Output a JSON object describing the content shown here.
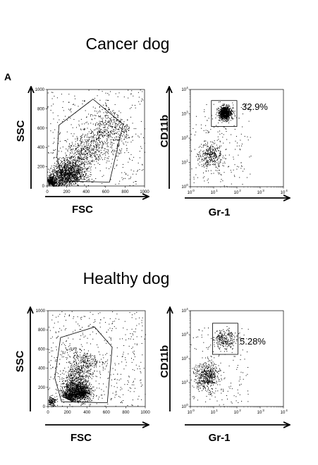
{
  "panel_label": "A",
  "chart_data": [
    {
      "type": "scatter",
      "title": "Cancer dog",
      "xlabel": "FSC",
      "ylabel": "SSC",
      "xlim": [
        0,
        1000
      ],
      "ylim": [
        0,
        1000
      ],
      "xticks": [
        0,
        200,
        400,
        600,
        800,
        1000
      ],
      "yticks": [
        0,
        200,
        400,
        600,
        800,
        1000
      ],
      "x_tick_labels": [
        "0",
        "200",
        "400",
        "600",
        "800",
        "1000"
      ],
      "y_tick_labels": [
        "0",
        "200",
        "400",
        "600",
        "800",
        "1000"
      ],
      "gate": {
        "shape": "polygon",
        "vertices": [
          [
            120,
            630
          ],
          [
            470,
            900
          ],
          [
            780,
            640
          ],
          [
            640,
            40
          ],
          [
            160,
            50
          ],
          [
            100,
            300
          ]
        ]
      },
      "populations": [
        {
          "name": "",
          "shape": "band",
          "from": [
            40,
            20
          ],
          "to": [
            760,
            700
          ],
          "spread": 140,
          "count": 1900
        },
        {
          "name": "",
          "shape": "blob",
          "center": [
            250,
            110
          ],
          "sd": [
            70,
            55
          ],
          "count": 600
        },
        {
          "name": "",
          "shape": "blob",
          "center": [
            35,
            45
          ],
          "sd": [
            20,
            20
          ],
          "count": 150
        },
        {
          "name": "",
          "shape": "uniform",
          "x": [
            0,
            1000
          ],
          "y": [
            0,
            1000
          ],
          "count": 350
        }
      ]
    },
    {
      "type": "scatter",
      "xscale": "log",
      "yscale": "log",
      "xlabel": "Gr-1",
      "ylabel": "CD11b",
      "xlim": [
        1,
        10000
      ],
      "ylim": [
        1,
        10000
      ],
      "x_tick_labels": [
        "10",
        "10",
        "10",
        "10",
        "10"
      ],
      "x_tick_exponents": [
        "0",
        "1",
        "2",
        "3",
        "4"
      ],
      "y_tick_labels": [
        "10",
        "10",
        "10",
        "10",
        "10"
      ],
      "y_tick_exponents": [
        "0",
        "1",
        "2",
        "3",
        "4"
      ],
      "gate": {
        "shape": "rectangle",
        "x": [
          8,
          100
        ],
        "y": [
          300,
          3500
        ],
        "label": "32.9%"
      },
      "populations": [
        {
          "name": "",
          "shape": "blob",
          "center": [
            30,
            1100
          ],
          "sd_log": [
            0.13,
            0.14
          ],
          "count": 900
        },
        {
          "name": "",
          "shape": "blob",
          "center": [
            7,
            20
          ],
          "sd_log": [
            0.25,
            0.25
          ],
          "count": 320
        },
        {
          "name": "",
          "shape": "uniform",
          "x": [
            1,
            400
          ],
          "y": [
            1,
            3000
          ],
          "count": 200
        }
      ]
    },
    {
      "type": "scatter",
      "title": "Healthy dog",
      "xlabel": "FSC",
      "ylabel": "SSC",
      "xlim": [
        0,
        1000
      ],
      "ylim": [
        0,
        1000
      ],
      "xticks": [
        0,
        200,
        400,
        600,
        800,
        1000
      ],
      "yticks": [
        0,
        200,
        400,
        600,
        800,
        1000
      ],
      "x_tick_labels": [
        "0",
        "200",
        "400",
        "600",
        "800",
        "1000"
      ],
      "y_tick_labels": [
        "0",
        "200",
        "400",
        "600",
        "800",
        "1000"
      ],
      "gate": {
        "shape": "polygon",
        "vertices": [
          [
            130,
            720
          ],
          [
            480,
            830
          ],
          [
            660,
            620
          ],
          [
            610,
            40
          ],
          [
            140,
            50
          ],
          [
            70,
            300
          ]
        ]
      },
      "populations": [
        {
          "name": "",
          "shape": "band",
          "from": [
            200,
            80
          ],
          "to": [
            420,
            560
          ],
          "spread": 120,
          "count": 1200
        },
        {
          "name": "",
          "shape": "blob",
          "center": [
            330,
            150
          ],
          "sd": [
            55,
            45
          ],
          "count": 900
        },
        {
          "name": "",
          "shape": "blob",
          "center": [
            40,
            50
          ],
          "sd": [
            20,
            25
          ],
          "count": 150
        },
        {
          "name": "",
          "shape": "uniform",
          "x": [
            0,
            1000
          ],
          "y": [
            0,
            1000
          ],
          "count": 450
        }
      ]
    },
    {
      "type": "scatter",
      "xscale": "log",
      "yscale": "log",
      "xlabel": "Gr-1",
      "ylabel": "CD11b",
      "xlim": [
        1,
        10000
      ],
      "ylim": [
        1,
        10000
      ],
      "x_tick_labels": [
        "10",
        "10",
        "10",
        "10",
        "10"
      ],
      "x_tick_exponents": [
        "0",
        "1",
        "2",
        "3",
        "4"
      ],
      "y_tick_labels": [
        "10",
        "10",
        "10",
        "10",
        "10"
      ],
      "y_tick_exponents": [
        "0",
        "1",
        "2",
        "3",
        "4"
      ],
      "gate": {
        "shape": "rectangle",
        "x": [
          9,
          110
        ],
        "y": [
          150,
          3000
        ],
        "label": "5.28%"
      },
      "populations": [
        {
          "name": "",
          "shape": "blob",
          "center": [
            30,
            700
          ],
          "sd_log": [
            0.25,
            0.2
          ],
          "count": 250
        },
        {
          "name": "",
          "shape": "blob",
          "center": [
            5,
            18
          ],
          "sd_log": [
            0.25,
            0.3
          ],
          "count": 500
        },
        {
          "name": "",
          "shape": "uniform",
          "x": [
            1,
            300
          ],
          "y": [
            1,
            2000
          ],
          "count": 170
        }
      ]
    }
  ]
}
